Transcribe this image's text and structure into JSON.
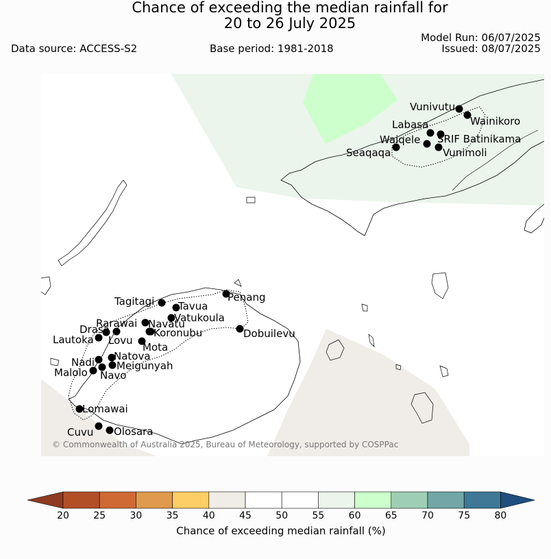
{
  "title_line1": "Chance of exceeding the median rainfall for",
  "title_line2": "20 to 26 July 2025",
  "data_source": "Data source: ACCESS-S2",
  "base_period": "Base period: 1981-2018",
  "model_run": "Model Run: 06/07/2025",
  "issued": "Issued: 08/07/2025",
  "copyright": "© Commonwealth of Australia 2025, Bureau of Meteorology, supported by COSPPac",
  "colorbar": {
    "label": "Chance of exceeding median rainfall (%)",
    "ticks": [
      "20",
      "25",
      "30",
      "35",
      "40",
      "45",
      "50",
      "55",
      "60",
      "65",
      "70",
      "75",
      "80"
    ],
    "colors": [
      "#b34f27",
      "#cf6a34",
      "#e09a4d",
      "#fdce65",
      "#f0ede9",
      "#ffffff",
      "#ffffff",
      "#ebf5eb",
      "#ccffcc",
      "#9ecfb4",
      "#72a6a7",
      "#3e7896"
    ],
    "under_color": "#8f3a22",
    "over_color": "#1e4f7d"
  },
  "stations": [
    {
      "name": "Vunivutu"
    },
    {
      "name": "Wainikoro"
    },
    {
      "name": "Labasa"
    },
    {
      "name": "Waiqele"
    },
    {
      "name": "SRIF Batinikama"
    },
    {
      "name": "Seaqaqa"
    },
    {
      "name": "Vunimoli"
    },
    {
      "name": "Tagitagi"
    },
    {
      "name": "Tavua"
    },
    {
      "name": "Penang"
    },
    {
      "name": "Vatukoula"
    },
    {
      "name": "Rarawai"
    },
    {
      "name": "Navatu"
    },
    {
      "name": "Drasa"
    },
    {
      "name": "Koronubu"
    },
    {
      "name": "Lautoka"
    },
    {
      "name": "Lovu"
    },
    {
      "name": "Dobuilevu"
    },
    {
      "name": "Mota"
    },
    {
      "name": "Natova"
    },
    {
      "name": "Nadi"
    },
    {
      "name": "Meigunyah"
    },
    {
      "name": "Malolo"
    },
    {
      "name": "Navo"
    },
    {
      "name": "Lomawai"
    },
    {
      "name": "Cuvu"
    },
    {
      "name": "Olosara"
    }
  ]
}
